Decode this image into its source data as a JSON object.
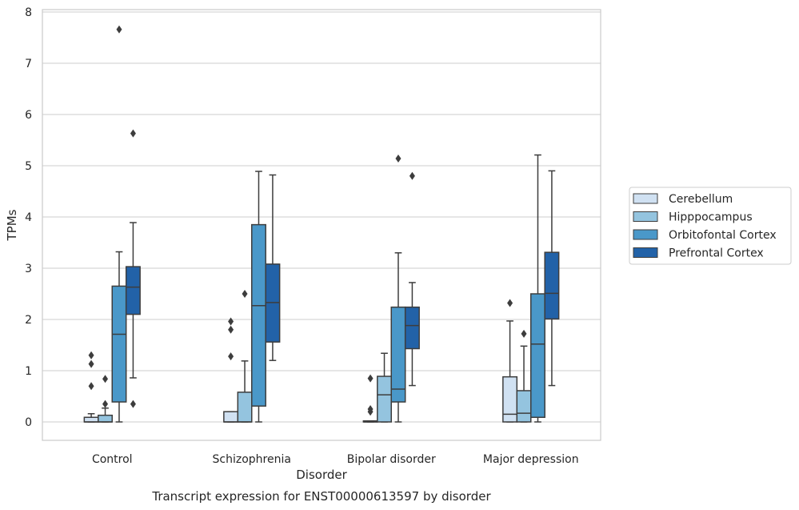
{
  "chart_data": {
    "type": "box",
    "title": "",
    "caption": "Transcript expression for ENST00000613597 by disorder",
    "xlabel": "Disorder",
    "ylabel": "TPMs",
    "ylim": [
      -0.35,
      8.05
    ],
    "yticks": [
      0,
      1,
      2,
      3,
      4,
      5,
      6,
      7,
      8
    ],
    "grid": "horizontal",
    "legend_position": "right",
    "categories": [
      "Control",
      "Schizophrenia",
      "Bipolar disorder",
      "Major depression"
    ],
    "series": [
      {
        "name": "Cerebellum",
        "color": "#d0e1f2",
        "boxes": [
          {
            "whisker_low": 0,
            "q1": 0,
            "median": 0,
            "q3": 0.09,
            "whisker_high": 0.16,
            "outliers": [
              0.7,
              1.13,
              1.3
            ]
          },
          {
            "whisker_low": 0,
            "q1": 0,
            "median": 0,
            "q3": 0.2,
            "whisker_high": 0.2,
            "outliers": [
              1.28,
              1.8,
              1.96
            ]
          },
          {
            "whisker_low": 0,
            "q1": 0,
            "median": 0,
            "q3": 0.02,
            "whisker_high": 0.02,
            "outliers": [
              0.2,
              0.25,
              0.85
            ]
          },
          {
            "whisker_low": 0,
            "q1": 0,
            "median": 0.15,
            "q3": 0.88,
            "whisker_high": 1.97,
            "outliers": [
              2.32
            ]
          }
        ]
      },
      {
        "name": "Hipppocampus",
        "color": "#94c4df",
        "boxes": [
          {
            "whisker_low": 0,
            "q1": 0,
            "median": 0,
            "q3": 0.13,
            "whisker_high": 0.27,
            "outliers": [
              0.35,
              0.84
            ]
          },
          {
            "whisker_low": 0,
            "q1": 0,
            "median": 0,
            "q3": 0.58,
            "whisker_high": 1.19,
            "outliers": [
              2.5
            ]
          },
          {
            "whisker_low": 0,
            "q1": 0,
            "median": 0.53,
            "q3": 0.89,
            "whisker_high": 1.34,
            "outliers": []
          },
          {
            "whisker_low": 0,
            "q1": 0,
            "median": 0.17,
            "q3": 0.61,
            "whisker_high": 1.48,
            "outliers": [
              1.72
            ]
          }
        ]
      },
      {
        "name": "Orbitofontal Cortex",
        "color": "#4a98c9",
        "boxes": [
          {
            "whisker_low": 0,
            "q1": 0.39,
            "median": 1.71,
            "q3": 2.65,
            "whisker_high": 3.32,
            "outliers": [
              7.66
            ]
          },
          {
            "whisker_low": 0,
            "q1": 0.31,
            "median": 2.27,
            "q3": 3.85,
            "whisker_high": 4.89,
            "outliers": []
          },
          {
            "whisker_low": 0,
            "q1": 0.39,
            "median": 0.64,
            "q3": 2.24,
            "whisker_high": 3.3,
            "outliers": [
              5.14
            ]
          },
          {
            "whisker_low": 0,
            "q1": 0.09,
            "median": 1.52,
            "q3": 2.5,
            "whisker_high": 5.21,
            "outliers": []
          }
        ]
      },
      {
        "name": "Prefrontal Cortex",
        "color": "#2262a8",
        "boxes": [
          {
            "whisker_low": 0.86,
            "q1": 2.1,
            "median": 2.63,
            "q3": 3.03,
            "whisker_high": 3.89,
            "outliers": [
              0.35,
              5.63
            ]
          },
          {
            "whisker_low": 1.2,
            "q1": 1.56,
            "median": 2.33,
            "q3": 3.08,
            "whisker_high": 4.82,
            "outliers": []
          },
          {
            "whisker_low": 0.71,
            "q1": 1.43,
            "median": 1.88,
            "q3": 2.24,
            "whisker_high": 2.72,
            "outliers": [
              4.8
            ]
          },
          {
            "whisker_low": 0.71,
            "q1": 2.01,
            "median": 2.51,
            "q3": 3.31,
            "whisker_high": 4.9,
            "outliers": []
          }
        ]
      }
    ]
  }
}
